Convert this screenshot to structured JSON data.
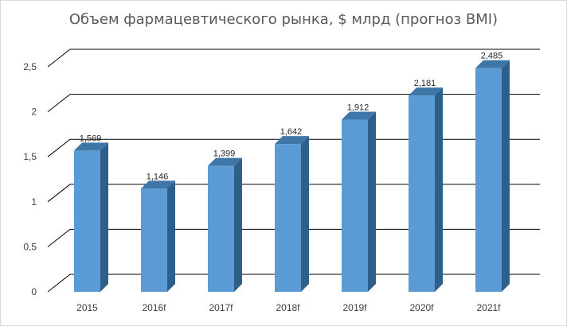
{
  "chart_data": {
    "type": "bar",
    "title": "Объем фармацевтического рынка, $ млрд (прогноз BMI)",
    "categories": [
      "2015",
      "2016f",
      "2017f",
      "2018f",
      "2019f",
      "2020f",
      "2021f"
    ],
    "values": [
      1.569,
      1.146,
      1.399,
      1.642,
      1.912,
      2.181,
      2.485
    ],
    "value_labels": [
      "1,569",
      "1,146",
      "1,399",
      "1,642",
      "1,912",
      "2,181",
      "2,485"
    ],
    "y_ticks": [
      "0",
      "0,5",
      "1",
      "1,5",
      "2",
      "2,5"
    ],
    "y_tick_values": [
      0,
      0.5,
      1,
      1.5,
      2,
      2.5
    ],
    "ylim": [
      0,
      2.5
    ],
    "xlabel": "",
    "ylabel": "",
    "grid": true,
    "legend": "none",
    "style": "3d-column",
    "colors": {
      "bar_front": "#5b9bd5",
      "bar_side": "#2e5f8a",
      "bar_top": "#3f76a8",
      "grid": "#000000",
      "text": "#404040"
    }
  }
}
